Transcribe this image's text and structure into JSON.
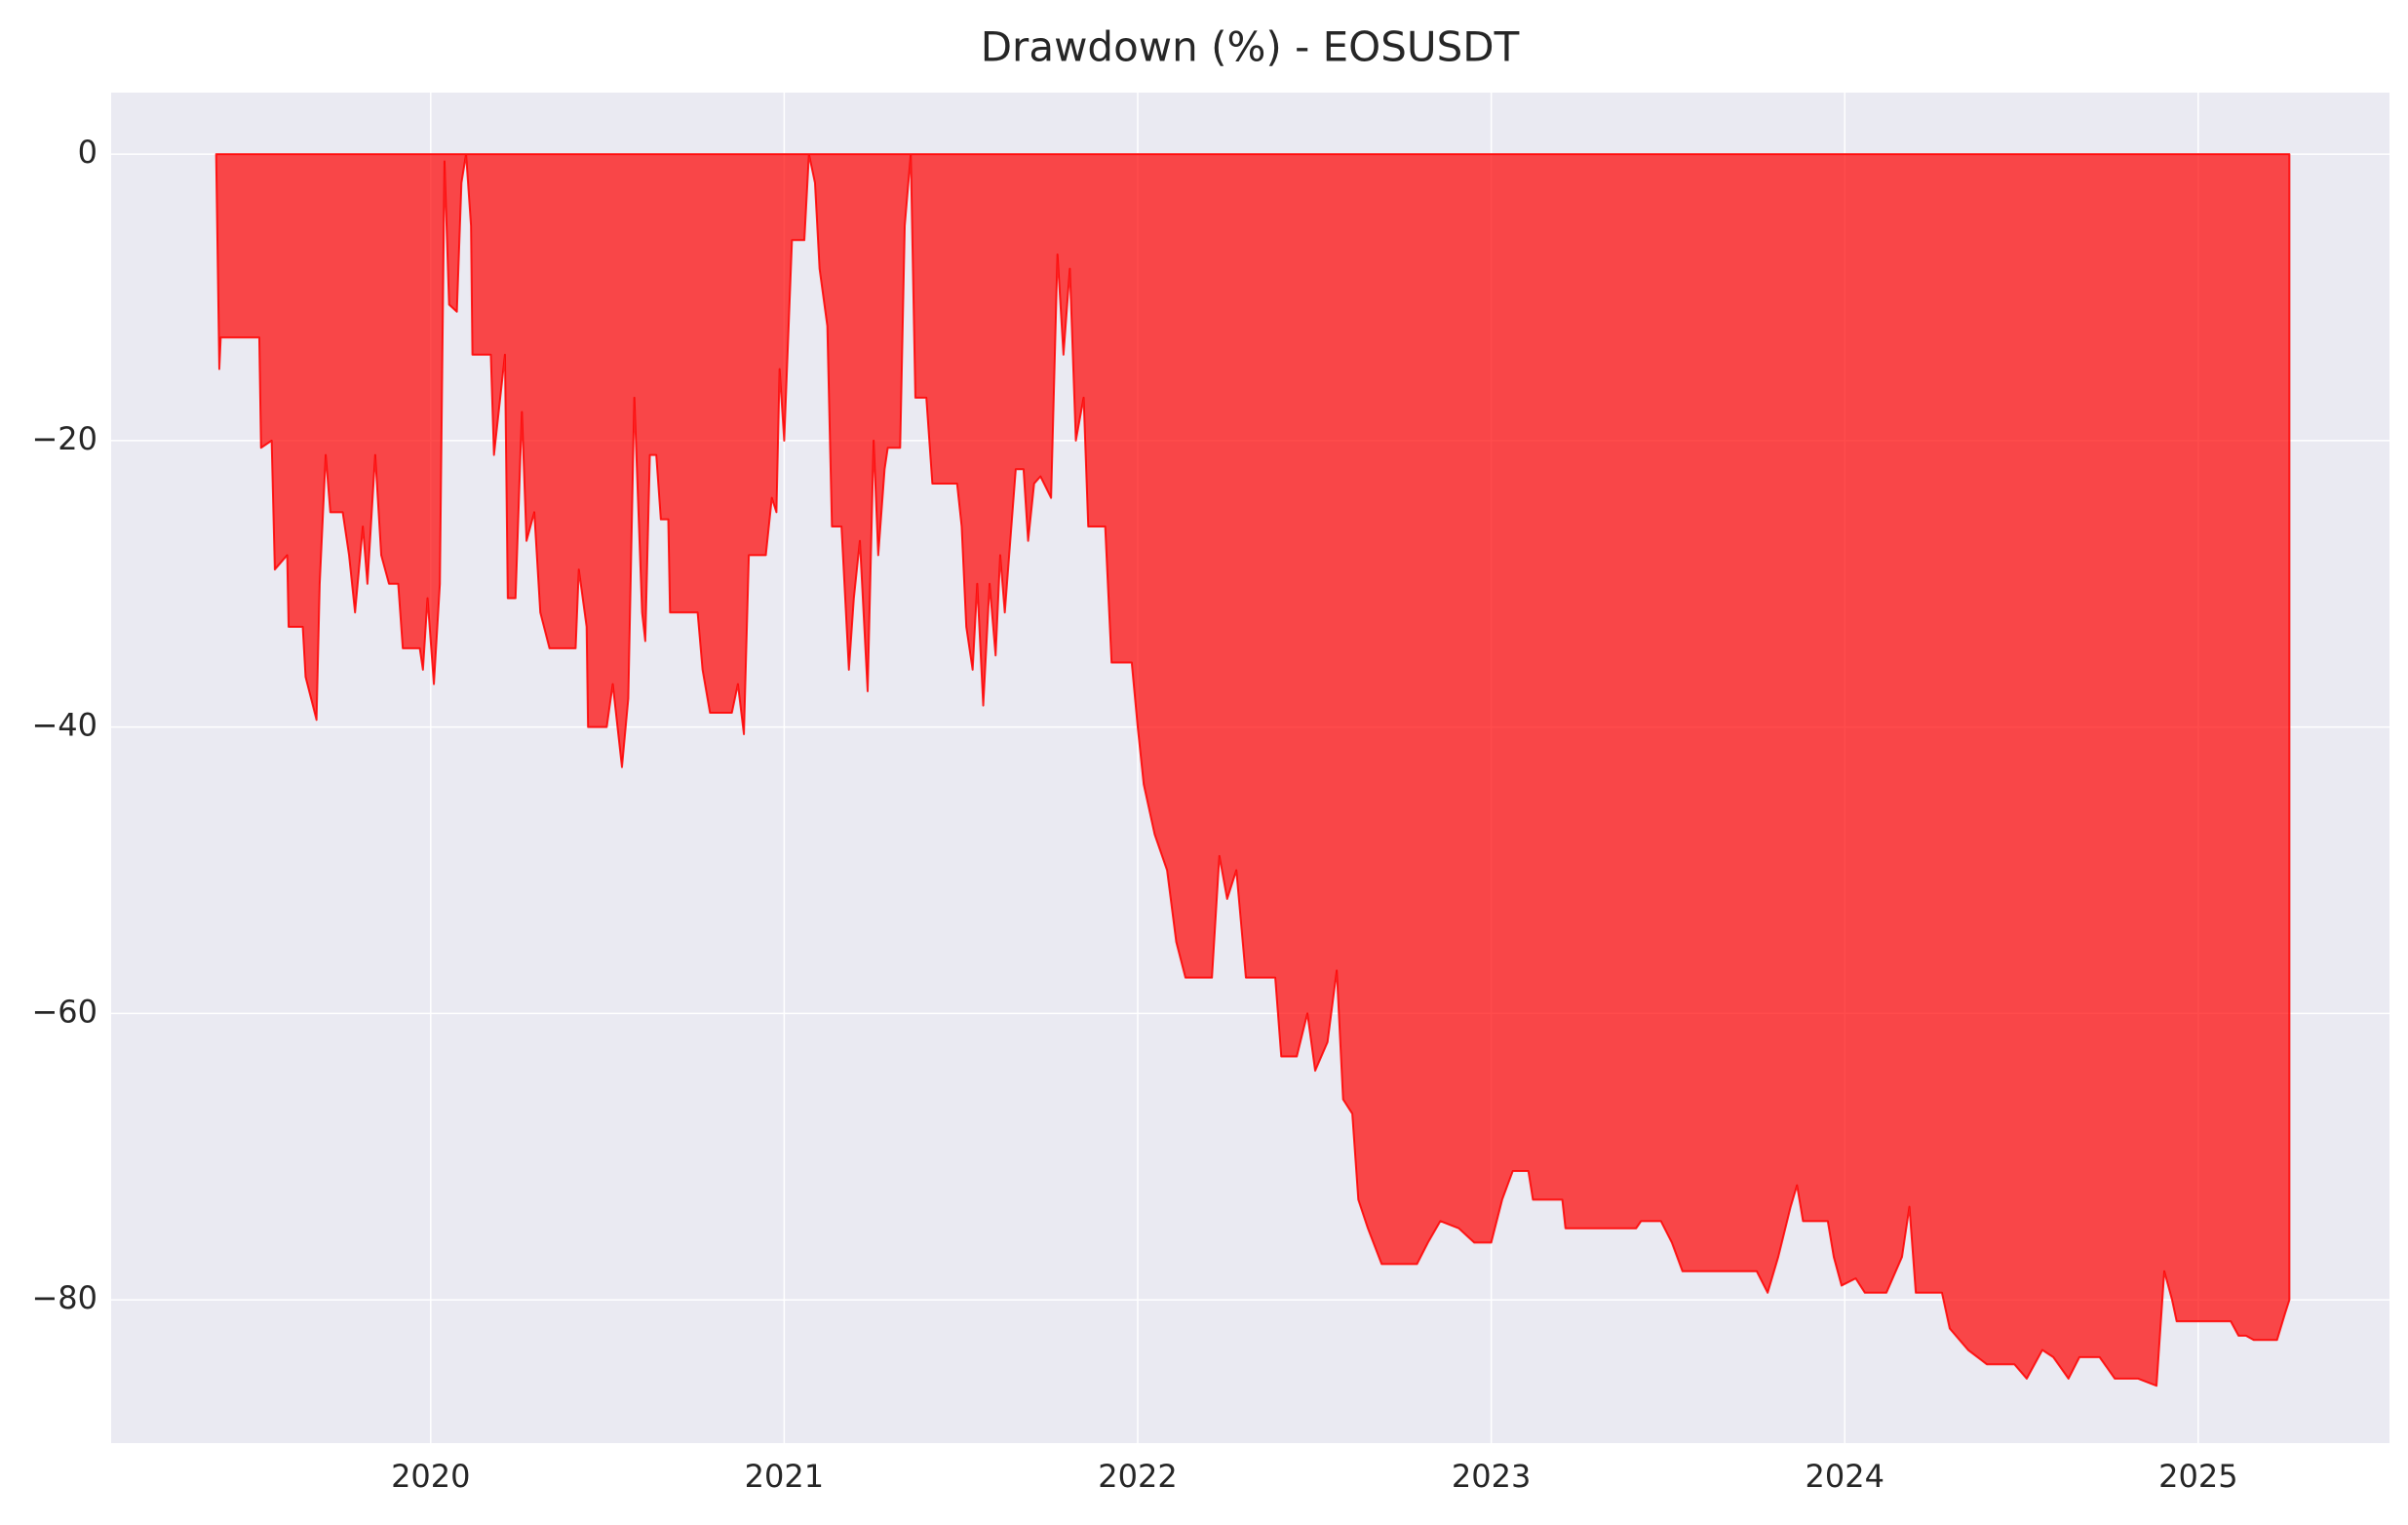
{
  "chart_data": {
    "type": "area",
    "title": "Drawdown (%) - EOSUSDT",
    "x": [
      2019.393,
      2019.402,
      2019.406,
      2019.515,
      2019.52,
      2019.55,
      2019.559,
      2019.594,
      2019.598,
      2019.638,
      2019.646,
      2019.677,
      2019.686,
      2019.703,
      2019.716,
      2019.751,
      2019.769,
      2019.786,
      2019.808,
      2019.821,
      2019.843,
      2019.86,
      2019.882,
      2019.908,
      2019.921,
      2019.969,
      2019.978,
      2019.991,
      2020.009,
      2020.026,
      2020.039,
      2020.052,
      2020.074,
      2020.087,
      2020.1,
      2020.114,
      2020.118,
      2020.17,
      2020.179,
      2020.21,
      2020.218,
      2020.24,
      2020.258,
      2020.271,
      2020.293,
      2020.31,
      2020.336,
      2020.41,
      2020.419,
      2020.441,
      2020.445,
      2020.498,
      2020.515,
      2020.541,
      2020.559,
      2020.576,
      2020.598,
      2020.607,
      2020.62,
      2020.638,
      2020.651,
      2020.672,
      2020.677,
      2020.755,
      2020.769,
      2020.79,
      2020.852,
      2020.869,
      2020.886,
      2020.9,
      2020.948,
      2020.965,
      2020.978,
      2020.987,
      2021.0,
      2021.022,
      2021.057,
      2021.07,
      2021.087,
      2021.1,
      2021.122,
      2021.135,
      2021.162,
      2021.183,
      2021.197,
      2021.214,
      2021.236,
      2021.253,
      2021.266,
      2021.284,
      2021.293,
      2021.328,
      2021.341,
      2021.358,
      2021.371,
      2021.402,
      2021.419,
      2021.489,
      2021.502,
      2021.515,
      2021.533,
      2021.546,
      2021.563,
      2021.581,
      2021.598,
      2021.611,
      2021.624,
      2021.655,
      2021.677,
      2021.69,
      2021.707,
      2021.725,
      2021.755,
      2021.773,
      2021.79,
      2021.808,
      2021.825,
      2021.847,
      2021.86,
      2021.908,
      2021.926,
      2021.983,
      2022.0,
      2022.017,
      2022.048,
      2022.083,
      2022.109,
      2022.135,
      2022.21,
      2022.231,
      2022.253,
      2022.279,
      2022.306,
      2022.389,
      2022.406,
      2022.45,
      2022.48,
      2022.502,
      2022.537,
      2022.563,
      2022.581,
      2022.607,
      2022.624,
      2022.651,
      2022.69,
      2022.79,
      2022.821,
      2022.856,
      2022.908,
      2022.952,
      2023.0,
      2023.031,
      2023.061,
      2023.105,
      2023.118,
      2023.201,
      2023.21,
      2023.41,
      2023.424,
      2023.48,
      2023.511,
      2023.541,
      2023.751,
      2023.782,
      2023.812,
      2023.847,
      2023.865,
      2023.882,
      2023.952,
      2023.969,
      2023.991,
      2024.031,
      2024.057,
      2024.118,
      2024.162,
      2024.183,
      2024.201,
      2024.275,
      2024.297,
      2024.349,
      2024.402,
      2024.48,
      2024.515,
      2024.559,
      2024.59,
      2024.633,
      2024.664,
      2024.721,
      2024.764,
      2024.83,
      2024.882,
      2024.904,
      2024.926,
      2024.939,
      2025.092,
      2025.114,
      2025.135,
      2025.157,
      2025.223,
      2025.245,
      2025.258
    ],
    "values": [
      0,
      -15,
      -12.8,
      -12.8,
      -20.5,
      -20,
      -29,
      -28,
      -33,
      -33,
      -36.5,
      -39.5,
      -30,
      -21,
      -25,
      -25,
      -28,
      -32,
      -26,
      -30,
      -21,
      -28,
      -30,
      -30,
      -34.5,
      -34.5,
      -36,
      -31,
      -37,
      -30,
      -0.5,
      -10.5,
      -11,
      -2,
      0,
      -5,
      -14,
      -14,
      -21,
      -14,
      -31,
      -31,
      -18,
      -27,
      -25,
      -32,
      -34.5,
      -34.5,
      -29,
      -33,
      -40,
      -40,
      -37,
      -42.8,
      -38,
      -17,
      -32,
      -34,
      -21,
      -21,
      -25.5,
      -25.5,
      -32,
      -32,
      -36,
      -39,
      -39,
      -37,
      -40.5,
      -28,
      -28,
      -24,
      -25,
      -15,
      -20,
      -6,
      -6,
      0,
      -2,
      -8,
      -12,
      -26,
      -26,
      -36,
      -31,
      -27,
      -37.5,
      -20,
      -28,
      -22,
      -20.5,
      -20.5,
      -5,
      0,
      -17,
      -17,
      -23,
      -23,
      -26,
      -33,
      -36,
      -30,
      -38.5,
      -30,
      -35,
      -28,
      -32,
      -22,
      -22,
      -27,
      -23,
      -22.5,
      -24,
      -7,
      -14,
      -8,
      -20,
      -17,
      -26,
      -26,
      -35.5,
      -35.5,
      -40,
      -44,
      -47.5,
      -50,
      -55,
      -57.5,
      -57.5,
      -49,
      -52,
      -50,
      -57.5,
      -57.5,
      -63,
      -63,
      -60,
      -64,
      -62,
      -57,
      -66,
      -67,
      -73,
      -75,
      -77.5,
      -77.5,
      -76,
      -74.5,
      -75,
      -76,
      -76,
      -73,
      -71,
      -71,
      -73,
      -73,
      -75,
      -75,
      -74.5,
      -74.5,
      -76,
      -78,
      -78,
      -79.5,
      -77,
      -73.5,
      -72,
      -74.5,
      -74.5,
      -77,
      -79,
      -78.5,
      -79.5,
      -79.5,
      -77,
      -73.5,
      -79.5,
      -79.5,
      -82,
      -83.5,
      -84.5,
      -84.5,
      -85.5,
      -83.5,
      -84,
      -85.5,
      -84,
      -84,
      -85.5,
      -85.5,
      -86,
      -78,
      -80,
      -81.5,
      -81.5,
      -82.5,
      -82.5,
      -82.8,
      -82.8,
      -81,
      -80
    ],
    "color": "#ff0000",
    "opacity": 0.7,
    "xlim": [
      2019.096,
      2025.541
    ],
    "ylim": [
      -90,
      4.3
    ],
    "xticks": [
      2020,
      2021,
      2022,
      2023,
      2024,
      2025
    ],
    "yticks": [
      {
        "value": -80,
        "label": "−80"
      },
      {
        "value": -60,
        "label": "−60"
      },
      {
        "value": -40,
        "label": "−40"
      },
      {
        "value": -20,
        "label": "−20"
      },
      0
    ],
    "grid": true
  }
}
